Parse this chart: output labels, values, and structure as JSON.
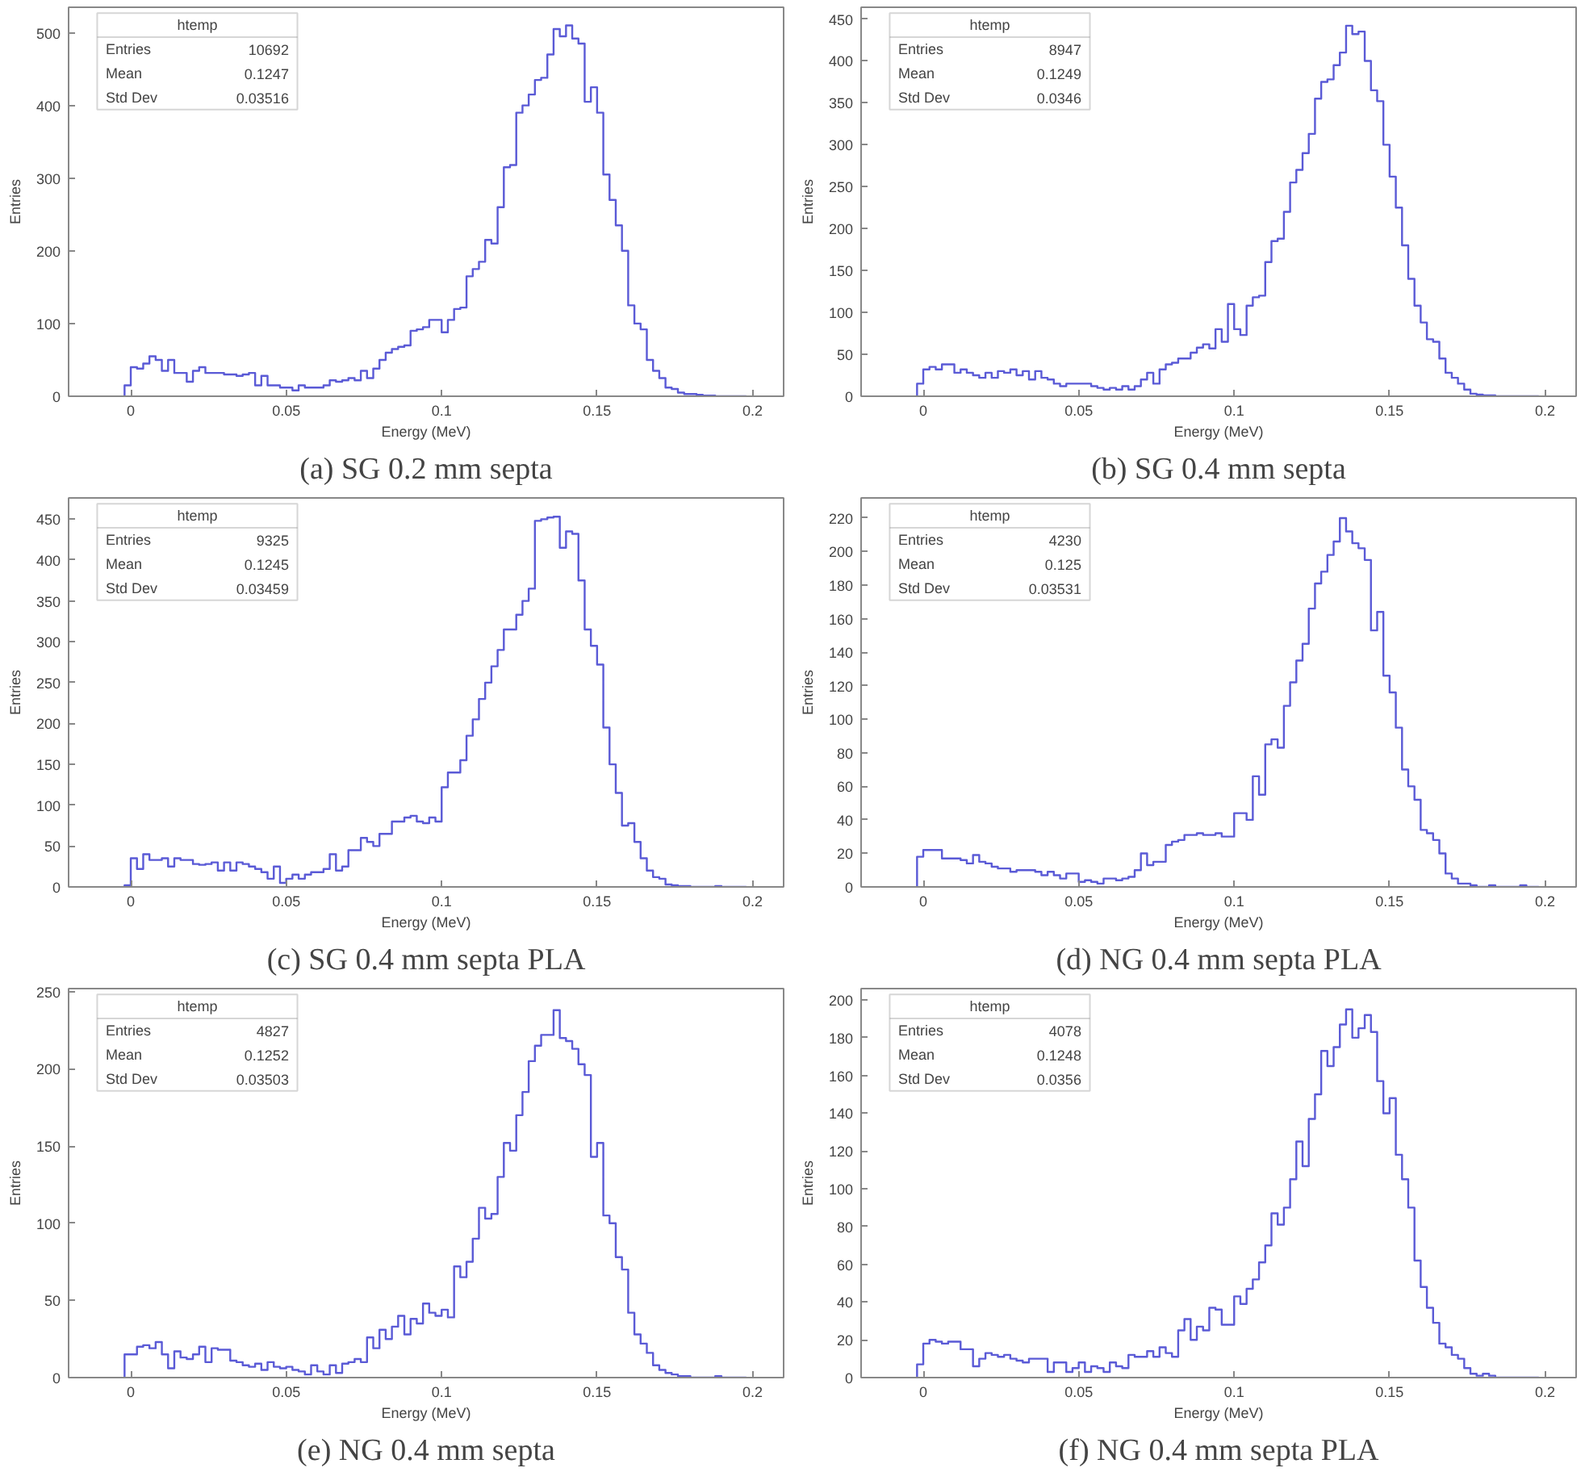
{
  "chart_data": [
    {
      "type": "histogram",
      "title": "(a) SG 0.2 mm septa",
      "xlabel": "Energy (MeV)",
      "ylabel": "Entries",
      "color": "#5a5ad6",
      "annotations": [
        "htemp",
        "Entries",
        "10692",
        "Mean",
        "0.1247",
        "Std Dev",
        "0.03516"
      ],
      "xlim": [
        -0.02,
        0.21
      ],
      "ylim": [
        0,
        535
      ],
      "xticks": [
        0,
        0.05,
        0.1,
        0.15,
        0.2
      ],
      "yticks": [
        0,
        100,
        200,
        300,
        400,
        500
      ],
      "bins": [
        -0.002,
        0,
        0.002,
        0.004,
        0.006,
        0.008,
        0.01,
        0.012,
        0.014,
        0.016,
        0.018,
        0.02,
        0.022,
        0.024,
        0.026,
        0.028,
        0.03,
        0.032,
        0.034,
        0.036,
        0.038,
        0.04,
        0.042,
        0.044,
        0.046,
        0.048,
        0.05,
        0.052,
        0.054,
        0.056,
        0.058,
        0.06,
        0.062,
        0.064,
        0.066,
        0.068,
        0.07,
        0.072,
        0.074,
        0.076,
        0.078,
        0.08,
        0.082,
        0.084,
        0.086,
        0.088,
        0.09,
        0.092,
        0.094,
        0.096,
        0.098,
        0.1,
        0.102,
        0.104,
        0.106,
        0.108,
        0.11,
        0.112,
        0.114,
        0.116,
        0.118,
        0.12,
        0.122,
        0.124,
        0.126,
        0.128,
        0.13,
        0.132,
        0.134,
        0.136,
        0.138,
        0.14,
        0.142,
        0.144,
        0.146,
        0.148,
        0.15,
        0.152,
        0.154,
        0.156,
        0.158,
        0.16,
        0.162,
        0.164,
        0.166,
        0.168,
        0.17,
        0.172,
        0.174,
        0.176,
        0.178,
        0.18,
        0.182,
        0.184,
        0.186,
        0.188,
        0.19,
        0.192,
        0.194,
        0.196,
        0.198
      ],
      "values": [
        15,
        40,
        38,
        45,
        55,
        50,
        35,
        50,
        32,
        32,
        20,
        35,
        40,
        32,
        32,
        32,
        30,
        30,
        28,
        30,
        32,
        15,
        28,
        15,
        15,
        12,
        12,
        8,
        15,
        12,
        12,
        12,
        15,
        22,
        20,
        22,
        25,
        22,
        35,
        25,
        38,
        50,
        60,
        65,
        68,
        70,
        90,
        92,
        95,
        105,
        105,
        88,
        105,
        120,
        122,
        165,
        175,
        185,
        215,
        210,
        260,
        315,
        318,
        390,
        400,
        415,
        435,
        438,
        470,
        505,
        495,
        510,
        492,
        485,
        405,
        425,
        390,
        305,
        270,
        235,
        200,
        125,
        100,
        92,
        50,
        35,
        25,
        12,
        10,
        5,
        3,
        3,
        2,
        1,
        1,
        0,
        0,
        0,
        0,
        0
      ]
    },
    {
      "type": "histogram",
      "title": "(b) SG 0.4 mm septa",
      "xlabel": "Energy (MeV)",
      "ylabel": "Entries",
      "color": "#5a5ad6",
      "annotations": [
        "htemp",
        "Entries",
        "8947",
        "Mean",
        "0.1249",
        "Std Dev",
        "0.0346"
      ],
      "xlim": [
        -0.02,
        0.21
      ],
      "ylim": [
        0,
        464
      ],
      "xticks": [
        0,
        0.05,
        0.1,
        0.15,
        0.2
      ],
      "yticks": [
        0,
        50,
        100,
        150,
        200,
        250,
        300,
        350,
        400,
        450
      ],
      "bins": [
        -0.002,
        0,
        0.002,
        0.004,
        0.006,
        0.008,
        0.01,
        0.012,
        0.014,
        0.016,
        0.018,
        0.02,
        0.022,
        0.024,
        0.026,
        0.028,
        0.03,
        0.032,
        0.034,
        0.036,
        0.038,
        0.04,
        0.042,
        0.044,
        0.046,
        0.048,
        0.05,
        0.052,
        0.054,
        0.056,
        0.058,
        0.06,
        0.062,
        0.064,
        0.066,
        0.068,
        0.07,
        0.072,
        0.074,
        0.076,
        0.078,
        0.08,
        0.082,
        0.084,
        0.086,
        0.088,
        0.09,
        0.092,
        0.094,
        0.096,
        0.098,
        0.1,
        0.102,
        0.104,
        0.106,
        0.108,
        0.11,
        0.112,
        0.114,
        0.116,
        0.118,
        0.12,
        0.122,
        0.124,
        0.126,
        0.128,
        0.13,
        0.132,
        0.134,
        0.136,
        0.138,
        0.14,
        0.142,
        0.144,
        0.146,
        0.148,
        0.15,
        0.152,
        0.154,
        0.156,
        0.158,
        0.16,
        0.162,
        0.164,
        0.166,
        0.168,
        0.17,
        0.172,
        0.174,
        0.176,
        0.178,
        0.18,
        0.182,
        0.184,
        0.186,
        0.188,
        0.19,
        0.192,
        0.194,
        0.196,
        0.198
      ],
      "values": [
        15,
        32,
        35,
        32,
        38,
        38,
        28,
        32,
        28,
        25,
        22,
        28,
        22,
        30,
        28,
        32,
        25,
        30,
        20,
        30,
        22,
        20,
        15,
        12,
        15,
        15,
        15,
        15,
        12,
        10,
        8,
        10,
        8,
        12,
        8,
        12,
        20,
        28,
        15,
        32,
        38,
        40,
        45,
        45,
        52,
        58,
        62,
        57,
        80,
        65,
        110,
        80,
        73,
        108,
        118,
        120,
        160,
        185,
        188,
        220,
        255,
        270,
        290,
        313,
        355,
        375,
        378,
        395,
        410,
        442,
        432,
        435,
        400,
        365,
        352,
        300,
        262,
        225,
        180,
        140,
        108,
        88,
        68,
        65,
        45,
        28,
        22,
        15,
        8,
        3,
        2,
        1,
        1,
        0,
        0,
        0,
        0,
        0,
        0,
        0
      ]
    },
    {
      "type": "histogram",
      "title": "(c) SG 0.4 mm septa PLA",
      "xlabel": "Energy (MeV)",
      "ylabel": "Entries",
      "color": "#5a5ad6",
      "annotations": [
        "htemp",
        "Entries",
        "9325",
        "Mean",
        "0.1245",
        "Std Dev",
        "0.03459"
      ],
      "xlim": [
        -0.02,
        0.21
      ],
      "ylim": [
        0,
        476
      ],
      "xticks": [
        0,
        0.05,
        0.1,
        0.15,
        0.2
      ],
      "yticks": [
        0,
        50,
        100,
        150,
        200,
        250,
        300,
        350,
        400,
        450
      ],
      "bins": [
        -0.002,
        0,
        0.002,
        0.004,
        0.006,
        0.008,
        0.01,
        0.012,
        0.014,
        0.016,
        0.018,
        0.02,
        0.022,
        0.024,
        0.026,
        0.028,
        0.03,
        0.032,
        0.034,
        0.036,
        0.038,
        0.04,
        0.042,
        0.044,
        0.046,
        0.048,
        0.05,
        0.052,
        0.054,
        0.056,
        0.058,
        0.06,
        0.062,
        0.064,
        0.066,
        0.068,
        0.07,
        0.072,
        0.074,
        0.076,
        0.078,
        0.08,
        0.082,
        0.084,
        0.086,
        0.088,
        0.09,
        0.092,
        0.094,
        0.096,
        0.098,
        0.1,
        0.102,
        0.104,
        0.106,
        0.108,
        0.11,
        0.112,
        0.114,
        0.116,
        0.118,
        0.12,
        0.122,
        0.124,
        0.126,
        0.128,
        0.13,
        0.132,
        0.134,
        0.136,
        0.138,
        0.14,
        0.142,
        0.144,
        0.146,
        0.148,
        0.15,
        0.152,
        0.154,
        0.156,
        0.158,
        0.16,
        0.162,
        0.164,
        0.166,
        0.168,
        0.17,
        0.172,
        0.174,
        0.176,
        0.178,
        0.18,
        0.182,
        0.184,
        0.186,
        0.188,
        0.19,
        0.192,
        0.194,
        0.196,
        0.198
      ],
      "values": [
        2,
        35,
        22,
        40,
        33,
        33,
        35,
        25,
        35,
        33,
        33,
        28,
        27,
        28,
        30,
        20,
        30,
        20,
        30,
        28,
        25,
        22,
        18,
        10,
        25,
        5,
        10,
        15,
        10,
        15,
        18,
        18,
        22,
        40,
        20,
        25,
        45,
        45,
        60,
        55,
        50,
        65,
        65,
        80,
        80,
        85,
        87,
        80,
        78,
        85,
        80,
        122,
        140,
        140,
        155,
        185,
        205,
        230,
        250,
        270,
        290,
        315,
        315,
        333,
        350,
        365,
        448,
        450,
        452,
        453,
        415,
        435,
        432,
        375,
        315,
        295,
        272,
        195,
        150,
        115,
        75,
        78,
        55,
        35,
        20,
        12,
        10,
        3,
        2,
        1,
        1,
        0,
        0,
        0,
        0,
        1,
        0,
        0,
        0,
        0
      ]
    },
    {
      "type": "histogram",
      "title": "(d) NG 0.4 mm septa PLA",
      "xlabel": "Energy (MeV)",
      "ylabel": "Entries",
      "color": "#5a5ad6",
      "annotations": [
        "htemp",
        "Entries",
        "4230",
        "Mean",
        "0.125",
        "Std Dev",
        "0.03531"
      ],
      "xlim": [
        -0.02,
        0.21
      ],
      "ylim": [
        0,
        232
      ],
      "xticks": [
        0,
        0.05,
        0.1,
        0.15,
        0.2
      ],
      "yticks": [
        0,
        20,
        40,
        60,
        80,
        100,
        120,
        140,
        160,
        180,
        200,
        220
      ],
      "bins": [
        -0.002,
        0,
        0.002,
        0.004,
        0.006,
        0.008,
        0.01,
        0.012,
        0.014,
        0.016,
        0.018,
        0.02,
        0.022,
        0.024,
        0.026,
        0.028,
        0.03,
        0.032,
        0.034,
        0.036,
        0.038,
        0.04,
        0.042,
        0.044,
        0.046,
        0.048,
        0.05,
        0.052,
        0.054,
        0.056,
        0.058,
        0.06,
        0.062,
        0.064,
        0.066,
        0.068,
        0.07,
        0.072,
        0.074,
        0.076,
        0.078,
        0.08,
        0.082,
        0.084,
        0.086,
        0.088,
        0.09,
        0.092,
        0.094,
        0.096,
        0.098,
        0.1,
        0.102,
        0.104,
        0.106,
        0.108,
        0.11,
        0.112,
        0.114,
        0.116,
        0.118,
        0.12,
        0.122,
        0.124,
        0.126,
        0.128,
        0.13,
        0.132,
        0.134,
        0.136,
        0.138,
        0.14,
        0.142,
        0.144,
        0.146,
        0.148,
        0.15,
        0.152,
        0.154,
        0.156,
        0.158,
        0.16,
        0.162,
        0.164,
        0.166,
        0.168,
        0.17,
        0.172,
        0.174,
        0.176,
        0.178,
        0.18,
        0.182,
        0.184,
        0.186,
        0.188,
        0.19,
        0.192,
        0.194,
        0.196,
        0.198
      ],
      "values": [
        18,
        22,
        22,
        22,
        17,
        17,
        17,
        16,
        14,
        19,
        15,
        14,
        12,
        11,
        11,
        9,
        10,
        10,
        10,
        9,
        7,
        9,
        7,
        5,
        8,
        8,
        3,
        4,
        3,
        2,
        5,
        5,
        4,
        5,
        6,
        10,
        20,
        13,
        15,
        15,
        25,
        27,
        28,
        31,
        31,
        32,
        31,
        31,
        32,
        30,
        30,
        44,
        44,
        40,
        66,
        55,
        85,
        88,
        83,
        108,
        122,
        135,
        145,
        166,
        181,
        188,
        198,
        206,
        220,
        212,
        205,
        202,
        195,
        153,
        164,
        126,
        116,
        95,
        70,
        60,
        52,
        34,
        32,
        28,
        20,
        8,
        5,
        2,
        2,
        1,
        0,
        0,
        1,
        0,
        0,
        0,
        0,
        1,
        0,
        0
      ]
    },
    {
      "type": "histogram",
      "title": "(e) NG 0.4 mm septa",
      "xlabel": "Energy (MeV)",
      "ylabel": "Entries",
      "color": "#5a5ad6",
      "annotations": [
        "htemp",
        "Entries",
        "4827",
        "Mean",
        "0.1252",
        "Std Dev",
        "0.03503"
      ],
      "xlim": [
        -0.02,
        0.21
      ],
      "ylim": [
        0,
        252
      ],
      "xticks": [
        0,
        0.05,
        0.1,
        0.15,
        0.2
      ],
      "yticks": [
        0,
        50,
        100,
        150,
        200,
        250
      ],
      "bins": [
        -0.002,
        0,
        0.002,
        0.004,
        0.006,
        0.008,
        0.01,
        0.012,
        0.014,
        0.016,
        0.018,
        0.02,
        0.022,
        0.024,
        0.026,
        0.028,
        0.03,
        0.032,
        0.034,
        0.036,
        0.038,
        0.04,
        0.042,
        0.044,
        0.046,
        0.048,
        0.05,
        0.052,
        0.054,
        0.056,
        0.058,
        0.06,
        0.062,
        0.064,
        0.066,
        0.068,
        0.07,
        0.072,
        0.074,
        0.076,
        0.078,
        0.08,
        0.082,
        0.084,
        0.086,
        0.088,
        0.09,
        0.092,
        0.094,
        0.096,
        0.098,
        0.1,
        0.102,
        0.104,
        0.106,
        0.108,
        0.11,
        0.112,
        0.114,
        0.116,
        0.118,
        0.12,
        0.122,
        0.124,
        0.126,
        0.128,
        0.13,
        0.132,
        0.134,
        0.136,
        0.138,
        0.14,
        0.142,
        0.144,
        0.146,
        0.148,
        0.15,
        0.152,
        0.154,
        0.156,
        0.158,
        0.16,
        0.162,
        0.164,
        0.166,
        0.168,
        0.17,
        0.172,
        0.174,
        0.176,
        0.178,
        0.18,
        0.182,
        0.184,
        0.186,
        0.188,
        0.19,
        0.192,
        0.194,
        0.196,
        0.198
      ],
      "values": [
        15,
        15,
        20,
        21,
        19,
        23,
        15,
        6,
        17,
        13,
        12,
        15,
        20,
        10,
        19,
        18,
        18,
        11,
        10,
        8,
        7,
        9,
        5,
        10,
        7,
        6,
        7,
        5,
        4,
        2,
        8,
        4,
        2,
        8,
        3,
        9,
        10,
        12,
        10,
        26,
        19,
        31,
        25,
        33,
        40,
        28,
        38,
        35,
        48,
        42,
        40,
        44,
        39,
        72,
        65,
        75,
        90,
        110,
        103,
        106,
        130,
        152,
        147,
        170,
        185,
        205,
        215,
        222,
        222,
        238,
        220,
        218,
        213,
        203,
        196,
        143,
        152,
        105,
        100,
        78,
        70,
        42,
        28,
        22,
        16,
        8,
        5,
        3,
        2,
        1,
        1,
        0,
        0,
        0,
        0,
        1,
        0,
        0,
        0,
        0
      ]
    },
    {
      "type": "histogram",
      "title": "(f) NG 0.4 mm septa PLA",
      "xlabel": "Energy (MeV)",
      "ylabel": "Entries",
      "color": "#5a5ad6",
      "annotations": [
        "htemp",
        "Entries",
        "4078",
        "Mean",
        "0.1248",
        "Std Dev",
        "0.0356"
      ],
      "xlim": [
        -0.02,
        0.21
      ],
      "ylim": [
        0,
        206
      ],
      "xticks": [
        0,
        0.05,
        0.1,
        0.15,
        0.2
      ],
      "yticks": [
        0,
        20,
        40,
        60,
        80,
        100,
        120,
        140,
        160,
        180,
        200
      ],
      "bins": [
        -0.002,
        0,
        0.002,
        0.004,
        0.006,
        0.008,
        0.01,
        0.012,
        0.014,
        0.016,
        0.018,
        0.02,
        0.022,
        0.024,
        0.026,
        0.028,
        0.03,
        0.032,
        0.034,
        0.036,
        0.038,
        0.04,
        0.042,
        0.044,
        0.046,
        0.048,
        0.05,
        0.052,
        0.054,
        0.056,
        0.058,
        0.06,
        0.062,
        0.064,
        0.066,
        0.068,
        0.07,
        0.072,
        0.074,
        0.076,
        0.078,
        0.08,
        0.082,
        0.084,
        0.086,
        0.088,
        0.09,
        0.092,
        0.094,
        0.096,
        0.098,
        0.1,
        0.102,
        0.104,
        0.106,
        0.108,
        0.11,
        0.112,
        0.114,
        0.116,
        0.118,
        0.12,
        0.122,
        0.124,
        0.126,
        0.128,
        0.13,
        0.132,
        0.134,
        0.136,
        0.138,
        0.14,
        0.142,
        0.144,
        0.146,
        0.148,
        0.15,
        0.152,
        0.154,
        0.156,
        0.158,
        0.16,
        0.162,
        0.164,
        0.166,
        0.168,
        0.17,
        0.172,
        0.174,
        0.176,
        0.178,
        0.18,
        0.182,
        0.184,
        0.186,
        0.188,
        0.19,
        0.192,
        0.194,
        0.196,
        0.198
      ],
      "values": [
        7,
        18,
        20,
        19,
        18,
        19,
        19,
        15,
        15,
        6,
        10,
        13,
        12,
        11,
        12,
        10,
        9,
        8,
        10,
        10,
        10,
        3,
        8,
        8,
        3,
        5,
        8,
        3,
        6,
        5,
        3,
        8,
        6,
        5,
        12,
        11,
        11,
        14,
        11,
        16,
        13,
        11,
        25,
        31,
        20,
        27,
        25,
        37,
        36,
        28,
        28,
        43,
        39,
        47,
        52,
        61,
        70,
        87,
        81,
        90,
        105,
        125,
        112,
        137,
        150,
        173,
        165,
        175,
        187,
        195,
        180,
        185,
        192,
        183,
        157,
        140,
        148,
        118,
        105,
        90,
        62,
        48,
        37,
        29,
        18,
        16,
        12,
        10,
        5,
        2,
        1,
        2,
        1,
        0,
        0,
        0,
        0,
        0,
        0,
        0
      ]
    }
  ]
}
